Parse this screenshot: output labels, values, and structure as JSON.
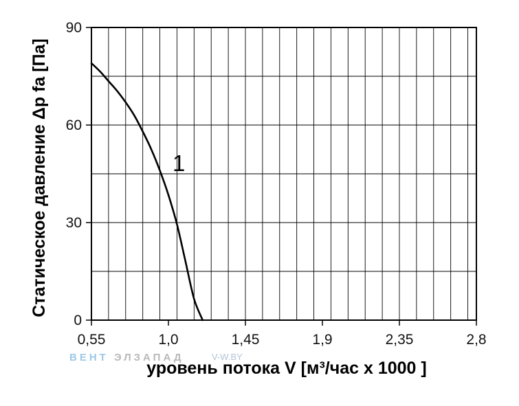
{
  "chart_data": {
    "type": "line",
    "xlabel": "уровень потока  V [м³/час x 1000 ]",
    "ylabel": "Статическое давление  Δp fa [Па]",
    "xlim": [
      0.55,
      2.8
    ],
    "ylim": [
      0,
      90
    ],
    "x_ticks": [
      "0,55",
      "1,0",
      "1,45",
      "1,9",
      "2,35",
      "2,8"
    ],
    "x_tick_values": [
      0.55,
      1.0,
      1.45,
      1.9,
      2.35,
      2.8
    ],
    "y_ticks": [
      "0",
      "30",
      "60",
      "90"
    ],
    "y_tick_values": [
      0,
      30,
      60,
      90
    ],
    "grid": true,
    "series": [
      {
        "name": "1",
        "color": "#000000",
        "x": [
          0.55,
          0.6,
          0.65,
          0.7,
          0.75,
          0.8,
          0.85,
          0.9,
          0.95,
          1.0,
          1.05,
          1.1,
          1.15,
          1.2
        ],
        "y": [
          79,
          76.5,
          73.5,
          70.5,
          67,
          63,
          58,
          52.5,
          46,
          38.5,
          29.5,
          18,
          6.5,
          0
        ]
      }
    ]
  },
  "watermark": {
    "part1": "ВЕНТ",
    "part2": "ЭЛЗАПАД",
    "part3": "V-W.BY"
  }
}
